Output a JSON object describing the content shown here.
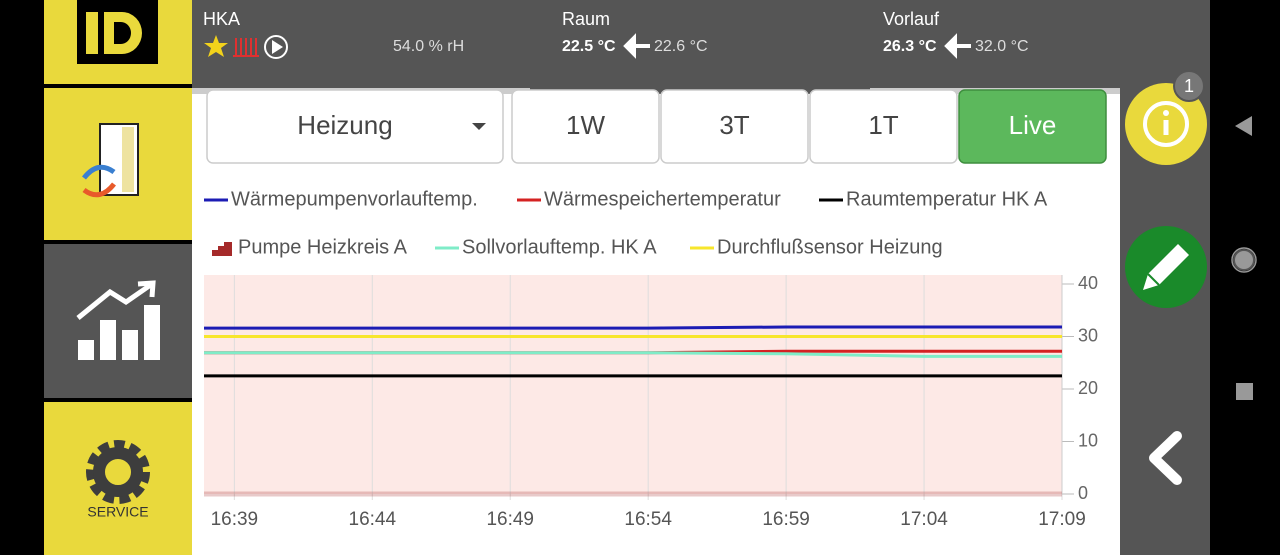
{
  "header": {
    "circuit": "HKA",
    "humidity": "54.0 % rH",
    "room": {
      "label": "Raum",
      "actual": "22.5 °C",
      "target": "22.6 °C"
    },
    "flow": {
      "label": "Vorlauf",
      "actual": "26.3 °C",
      "target": "32.0 °C"
    }
  },
  "tabs": {
    "dropdown": "Heizung",
    "ranges": [
      "1W",
      "3T",
      "1T",
      "Live"
    ],
    "active": 3
  },
  "sidebar": {
    "service": "SERVICE"
  },
  "badge": "1",
  "chart_data": {
    "type": "line",
    "x": [
      997.9,
      999,
      1004,
      1009,
      1014,
      1019,
      1024,
      1029
    ],
    "xlim": [
      997.9,
      1029
    ],
    "xticks": [
      {
        "value": 999,
        "label": "16:39"
      },
      {
        "value": 1004,
        "label": "16:44"
      },
      {
        "value": 1009,
        "label": "16:49"
      },
      {
        "value": 1014,
        "label": "16:54"
      },
      {
        "value": 1019,
        "label": "16:59"
      },
      {
        "value": 1024,
        "label": "17:04"
      },
      {
        "value": 1029,
        "label": "17:09"
      }
    ],
    "ylim": [
      0,
      40
    ],
    "yticks": [
      0,
      10,
      20,
      30,
      40
    ],
    "grid": true,
    "series": [
      {
        "name": "Wärmepumpenvorlauftemp.",
        "color": "#1c1cb4",
        "values": [
          31.6,
          31.6,
          31.6,
          31.6,
          31.6,
          31.8,
          31.8,
          31.8
        ]
      },
      {
        "name": "Wärmespeichertemperatur",
        "color": "#d42222",
        "values": [
          26.9,
          26.9,
          26.9,
          26.9,
          26.9,
          27.2,
          27.2,
          27.2
        ]
      },
      {
        "name": "Raumtemperatur HK A",
        "color": "#000000",
        "values": [
          22.5,
          22.5,
          22.5,
          22.5,
          22.5,
          22.5,
          22.5,
          22.5
        ]
      },
      {
        "name": "Pumpe Heizkreis A",
        "color": "#a52a2a",
        "values": [
          0,
          0,
          0,
          0,
          0,
          0,
          0,
          0
        ]
      },
      {
        "name": "Sollvorlauftemp. HK A",
        "color": "#7fecc8",
        "values": [
          26.9,
          26.9,
          26.9,
          26.9,
          26.9,
          26.7,
          26.2,
          26.2
        ]
      },
      {
        "name": "Durchflußsensor Heizung",
        "color": "#f7e62c",
        "values": [
          30,
          30,
          30,
          30,
          30,
          30,
          30,
          30
        ]
      }
    ]
  }
}
